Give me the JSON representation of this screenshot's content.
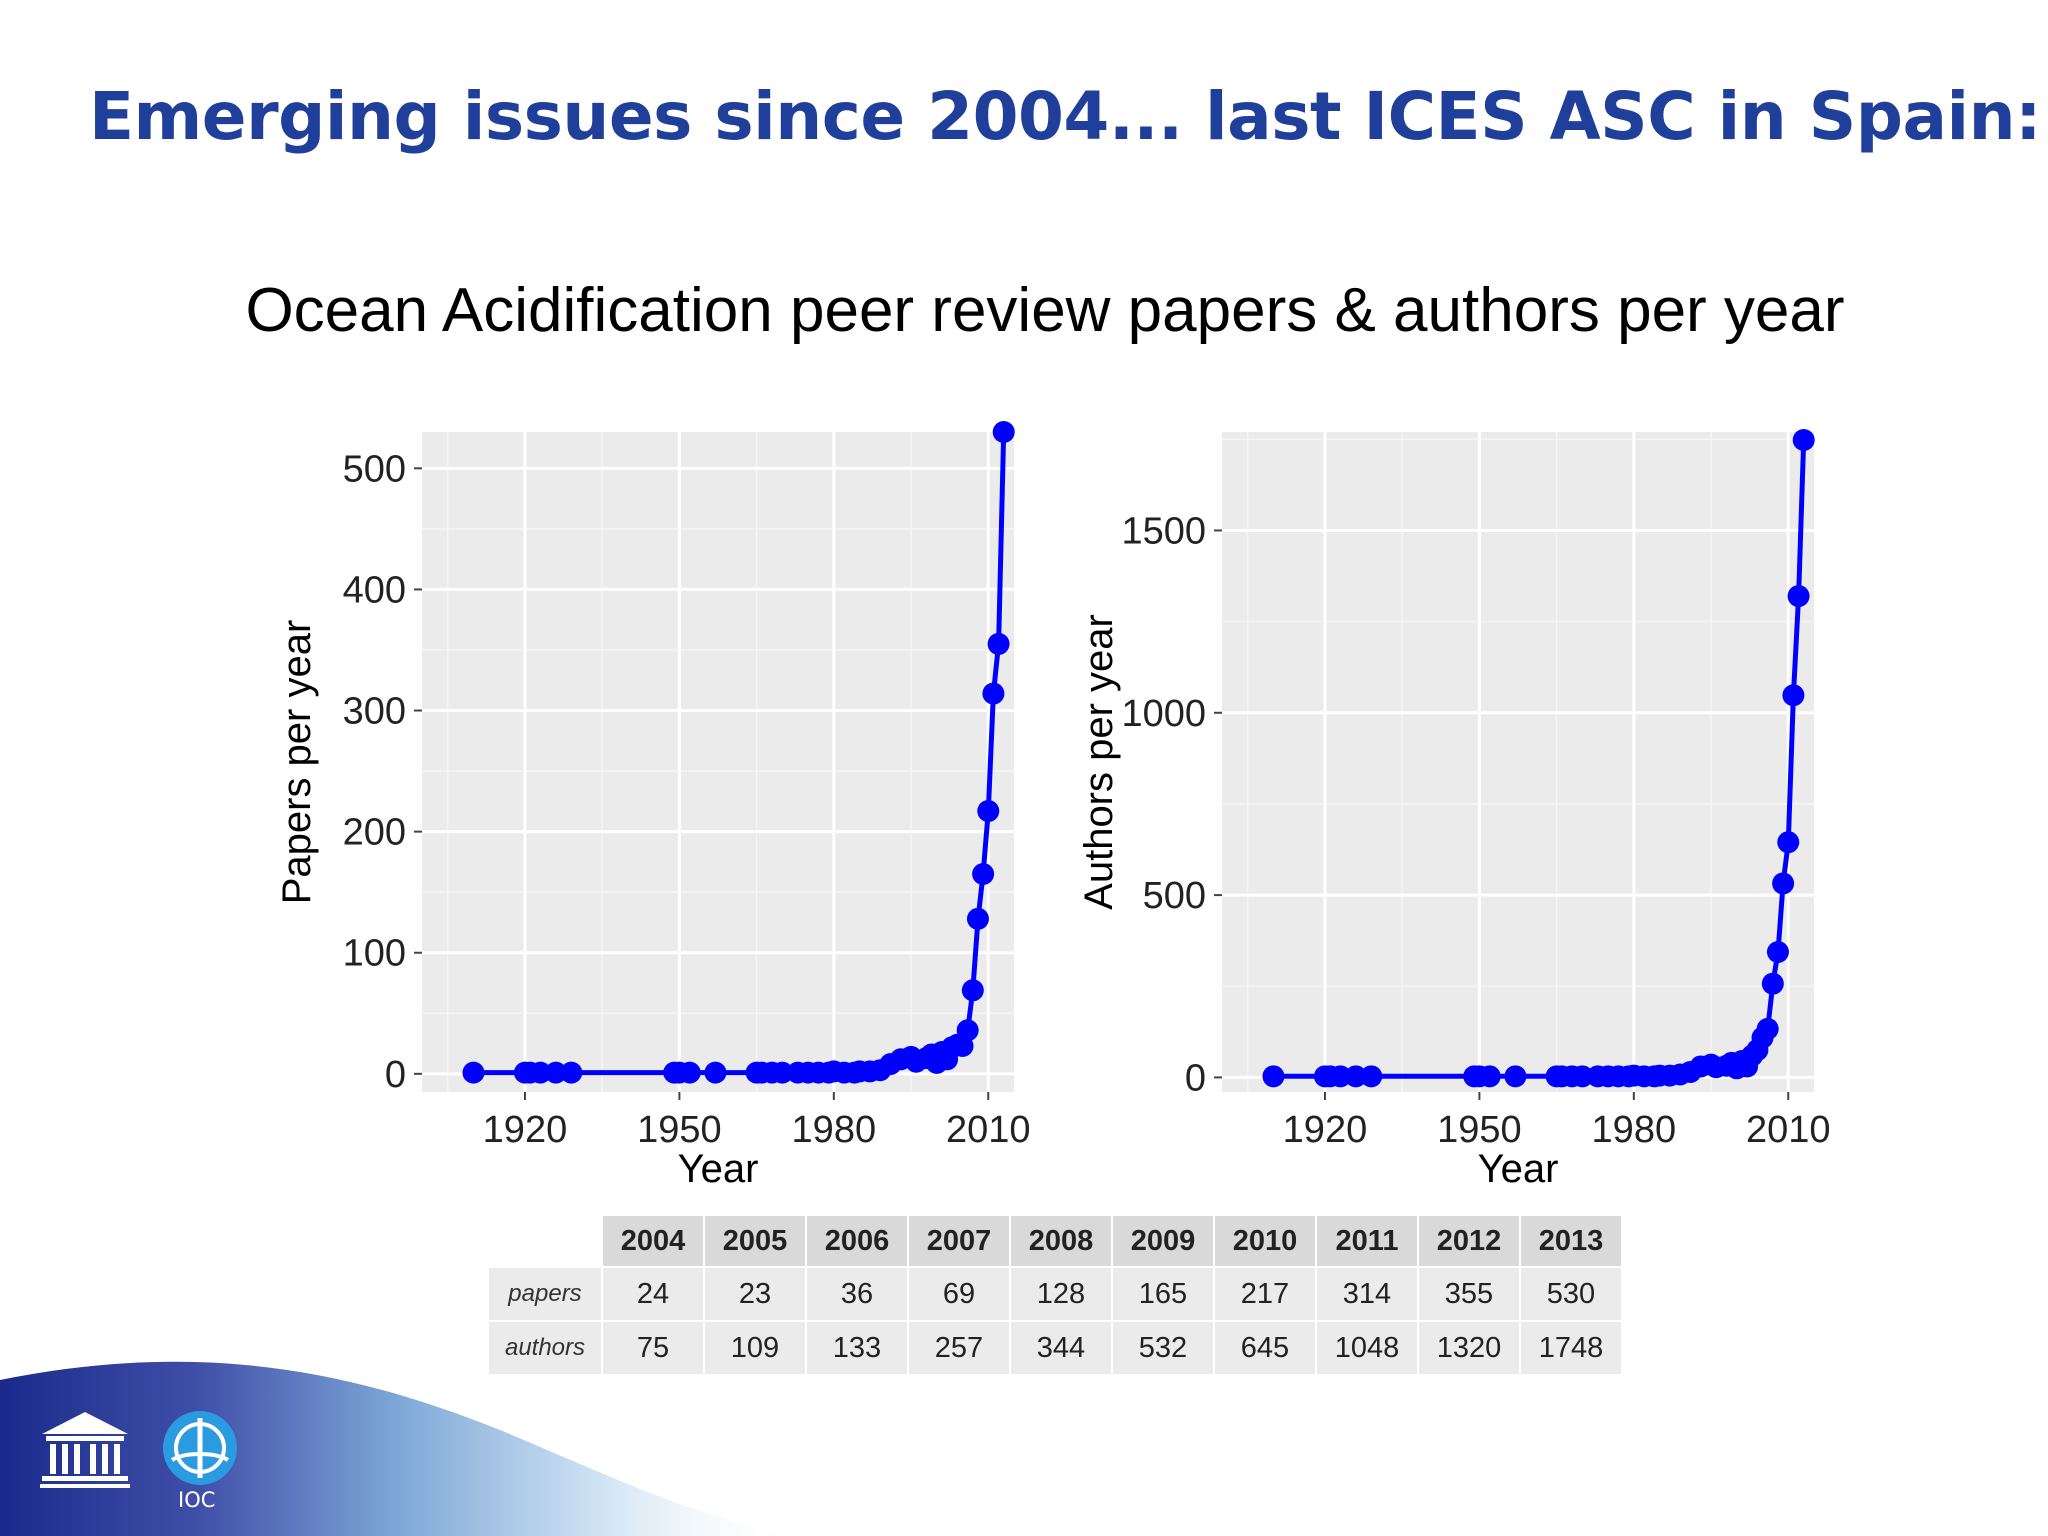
{
  "slide": {
    "title": "Emerging issues since 2004... last ICES ASC in Spain:",
    "subtitle": "Ocean Acidification peer review papers & authors per year"
  },
  "colors": {
    "title": "#1f3f9a",
    "series": "#0000ff",
    "panel": "#ebebeb",
    "grid": "#ffffff"
  },
  "chart_data": [
    {
      "type": "line",
      "title": "",
      "xlabel": "Year",
      "ylabel": "Papers per year",
      "xlim": [
        1900,
        2015
      ],
      "ylim": [
        -15,
        530
      ],
      "x_ticks": [
        1920,
        1950,
        1980,
        2010
      ],
      "y_ticks": [
        0,
        100,
        200,
        300,
        400,
        500
      ],
      "grid": true,
      "markers": true,
      "series": [
        {
          "x": [
            1910,
            1920,
            1921,
            1923,
            1926,
            1929,
            1949,
            1950,
            1952,
            1957,
            1965,
            1966,
            1968,
            1970,
            1973,
            1975,
            1977,
            1979,
            1980,
            1982,
            1984,
            1985,
            1987,
            1989,
            1991,
            1993,
            1995,
            1996,
            1998,
            1999,
            2000,
            2001,
            2002,
            2003,
            2004,
            2005,
            2006,
            2007,
            2008,
            2009,
            2010,
            2011,
            2012,
            2013
          ],
          "y": [
            1,
            1,
            1,
            1,
            1,
            1,
            1,
            1,
            1,
            1,
            1,
            1,
            1,
            1,
            1,
            1,
            1,
            1,
            2,
            1,
            1,
            2,
            2,
            3,
            8,
            12,
            14,
            10,
            13,
            16,
            9,
            18,
            12,
            22,
            24,
            23,
            36,
            69,
            128,
            165,
            217,
            314,
            355,
            530
          ]
        }
      ]
    },
    {
      "type": "line",
      "title": "",
      "xlabel": "Year",
      "ylabel": "Authors per year",
      "xlim": [
        1900,
        2015
      ],
      "ylim": [
        -40,
        1770
      ],
      "x_ticks": [
        1920,
        1950,
        1980,
        2010
      ],
      "y_ticks": [
        0,
        500,
        1000,
        1500
      ],
      "grid": true,
      "markers": true,
      "series": [
        {
          "x": [
            1910,
            1920,
            1921,
            1923,
            1926,
            1929,
            1949,
            1950,
            1952,
            1957,
            1965,
            1966,
            1968,
            1970,
            1973,
            1975,
            1977,
            1979,
            1980,
            1982,
            1984,
            1985,
            1987,
            1989,
            1991,
            1993,
            1995,
            1996,
            1998,
            1999,
            2000,
            2001,
            2002,
            2003,
            2004,
            2005,
            2006,
            2007,
            2008,
            2009,
            2010,
            2011,
            2012,
            2013
          ],
          "y": [
            3,
            3,
            3,
            3,
            3,
            3,
            3,
            3,
            3,
            3,
            3,
            3,
            3,
            3,
            3,
            3,
            3,
            3,
            5,
            3,
            3,
            5,
            5,
            8,
            15,
            30,
            35,
            28,
            32,
            40,
            25,
            45,
            30,
            60,
            75,
            109,
            133,
            257,
            344,
            532,
            645,
            1048,
            1320,
            1748
          ]
        }
      ]
    }
  ],
  "table": {
    "years": [
      "2004",
      "2005",
      "2006",
      "2007",
      "2008",
      "2009",
      "2010",
      "2011",
      "2012",
      "2013"
    ],
    "rows": [
      {
        "label": "papers",
        "values": [
          "24",
          "23",
          "36",
          "69",
          "128",
          "165",
          "217",
          "314",
          "355",
          "530"
        ]
      },
      {
        "label": "authors",
        "values": [
          "75",
          "109",
          "133",
          "257",
          "344",
          "532",
          "645",
          "1048",
          "1320",
          "1748"
        ]
      }
    ]
  },
  "footer": {
    "ioc_label": "IOC",
    "logos": [
      "unesco-temple-icon",
      "ioc-emblem-icon"
    ]
  }
}
